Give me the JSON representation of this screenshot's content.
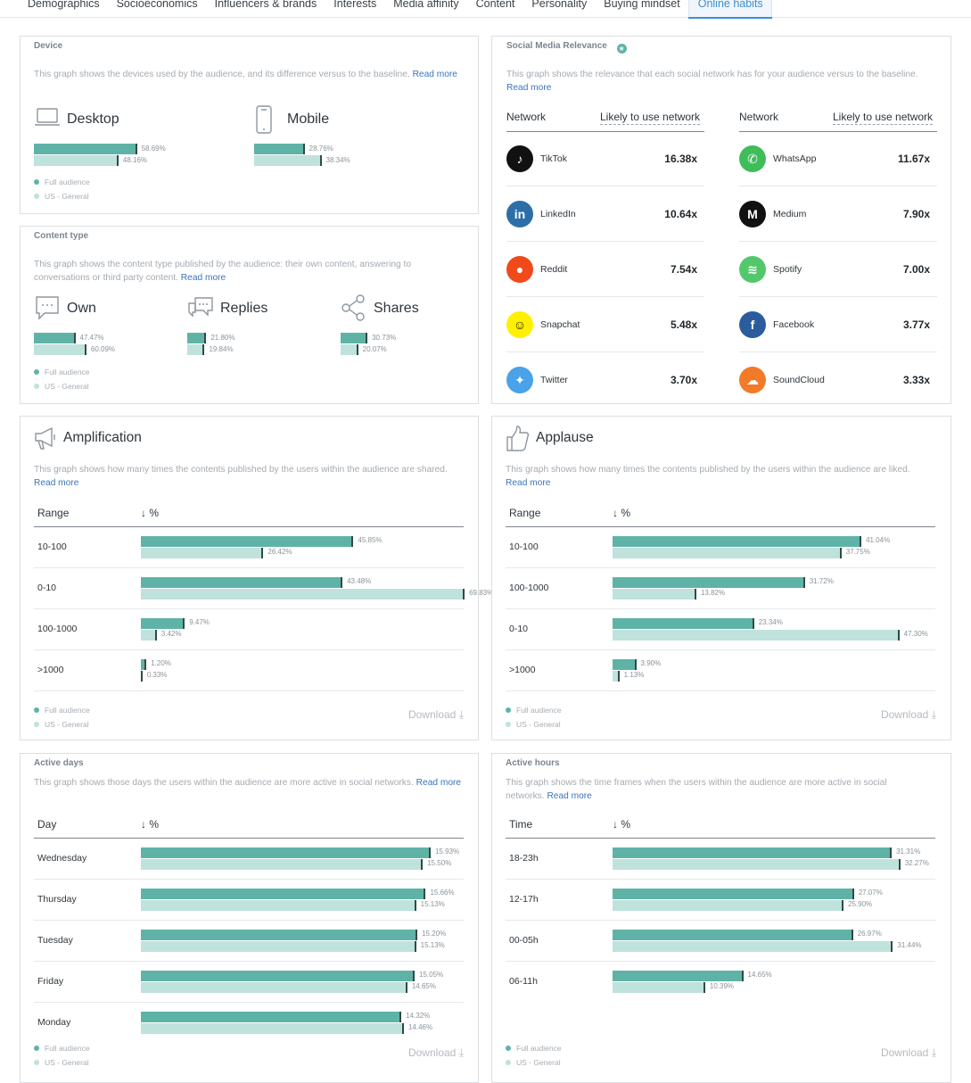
{
  "tabs": [
    "Demographics",
    "Socioeconomics",
    "Influencers & brands",
    "Interests",
    "Media affinity",
    "Content",
    "Personality",
    "Buying mindset",
    "Online habits"
  ],
  "colors": {
    "full": "#5fb3a6",
    "baseline": "#bfe2dd",
    "link": "#3b74b8",
    "active_tab": "#3b8fd0"
  },
  "legend": {
    "full": "Full audience",
    "base": "US - General"
  },
  "read_more": "Read more",
  "download": "Download",
  "device": {
    "title": "Device",
    "desc": "This graph shows the devices used by the audience, and its difference versus to the baseline.",
    "items": [
      {
        "icon": "laptop-icon",
        "label": "Desktop",
        "full": 58.69,
        "base": 48.16,
        "full_label": "58.69%",
        "base_label": "48.16%"
      },
      {
        "icon": "mobile-phone-icon",
        "label": "Mobile",
        "full": 28.76,
        "base": 38.34,
        "full_label": "28.76%",
        "base_label": "38.34%"
      }
    ]
  },
  "content_type": {
    "title": "Content type",
    "desc": "This graph shows the content type published by the audience: their own content, answering to conversations or third party content.",
    "items": [
      {
        "icon": "chat-bubble-icon",
        "label": "Own",
        "full": 47.47,
        "base": 60.09,
        "full_label": "47.47%",
        "base_label": "60.09%"
      },
      {
        "icon": "replies-icon",
        "label": "Replies",
        "full": 21.8,
        "base": 19.84,
        "full_label": "21.80%",
        "base_label": "19.84%"
      },
      {
        "icon": "share-icon",
        "label": "Shares",
        "full": 30.73,
        "base": 20.07,
        "full_label": "30.73%",
        "base_label": "20.07%"
      }
    ]
  },
  "social": {
    "title": "Social Media Relevance",
    "desc": "This graph shows the relevance that each social network has for your audience versus to the baseline.",
    "col_network": "Network",
    "col_likely": "Likely to use network",
    "left": [
      {
        "name": "TikTok",
        "value": "16.38x",
        "color": "#111111",
        "glyph": "♪"
      },
      {
        "name": "LinkedIn",
        "value": "10.64x",
        "color": "#2c6fa8",
        "glyph": "in"
      },
      {
        "name": "Reddit",
        "value": "7.54x",
        "color": "#f04a1a",
        "glyph": "●"
      },
      {
        "name": "Snapchat",
        "value": "5.48x",
        "color": "#fff000",
        "glyph": "☺"
      },
      {
        "name": "Twitter",
        "value": "3.70x",
        "color": "#4aa3e8",
        "glyph": "✦"
      }
    ],
    "right": [
      {
        "name": "WhatsApp",
        "value": "11.67x",
        "color": "#3fbd5a",
        "glyph": "✆"
      },
      {
        "name": "Medium",
        "value": "7.90x",
        "color": "#111111",
        "glyph": "M"
      },
      {
        "name": "Spotify",
        "value": "7.00x",
        "color": "#52c86a",
        "glyph": "≋"
      },
      {
        "name": "Facebook",
        "value": "3.77x",
        "color": "#2b5d9e",
        "glyph": "f"
      },
      {
        "name": "SoundCloud",
        "value": "3.33x",
        "color": "#f27a28",
        "glyph": "☁"
      }
    ]
  },
  "amplification": {
    "title": "Amplification",
    "desc": "This graph shows how many times the contents published by the users within the audience are shared.",
    "col1": "Range",
    "col2": "%",
    "rows": [
      {
        "label": "10-100",
        "full": 45.85,
        "base": 26.42,
        "full_label": "45.85%",
        "base_label": "26.42%"
      },
      {
        "label": "0-10",
        "full": 43.48,
        "base": 69.83,
        "full_label": "43.48%",
        "base_label": "69.83%"
      },
      {
        "label": "100-1000",
        "full": 9.47,
        "base": 3.42,
        "full_label": "9.47%",
        "base_label": "3.42%"
      },
      {
        "label": ">1000",
        "full": 1.2,
        "base": 0.33,
        "full_label": "1.20%",
        "base_label": "0.33%"
      }
    ]
  },
  "applause": {
    "title": "Applause",
    "desc": "This graph shows how many times the contents published by the users within the audience are liked.",
    "col1": "Range",
    "col2": "%",
    "rows": [
      {
        "label": "10-100",
        "full": 41.04,
        "base": 37.75,
        "full_label": "41.04%",
        "base_label": "37.75%"
      },
      {
        "label": "100-1000",
        "full": 31.72,
        "base": 13.82,
        "full_label": "31.72%",
        "base_label": "13.82%"
      },
      {
        "label": "0-10",
        "full": 23.34,
        "base": 47.3,
        "full_label": "23.34%",
        "base_label": "47.30%"
      },
      {
        "label": ">1000",
        "full": 3.9,
        "base": 1.13,
        "full_label": "3.90%",
        "base_label": "1.13%"
      }
    ]
  },
  "active_days": {
    "title": "Active days",
    "desc": "This graph shows those days the users within the audience are more active in social networks.",
    "col1": "Day",
    "col2": "%",
    "rows": [
      {
        "label": "Wednesday",
        "full": 15.93,
        "base": 15.5,
        "full_label": "15.93%",
        "base_label": "15.50%"
      },
      {
        "label": "Thursday",
        "full": 15.66,
        "base": 15.13,
        "full_label": "15.66%",
        "base_label": "15.13%"
      },
      {
        "label": "Tuesday",
        "full": 15.2,
        "base": 15.13,
        "full_label": "15.20%",
        "base_label": "15.13%"
      },
      {
        "label": "Friday",
        "full": 15.05,
        "base": 14.65,
        "full_label": "15.05%",
        "base_label": "14.65%"
      },
      {
        "label": "Monday",
        "full": 14.32,
        "base": 14.46,
        "full_label": "14.32%",
        "base_label": "14.46%"
      }
    ]
  },
  "active_hours": {
    "title": "Active hours",
    "desc": "This graph shows the time frames when the users within the audience are more active in social networks.",
    "col1": "Time",
    "col2": "%",
    "rows": [
      {
        "label": "18-23h",
        "full": 31.31,
        "base": 32.27,
        "full_label": "31.31%",
        "base_label": "32.27%"
      },
      {
        "label": "12-17h",
        "full": 27.07,
        "base": 25.9,
        "full_label": "27.07%",
        "base_label": "25.90%"
      },
      {
        "label": "00-05h",
        "full": 26.97,
        "base": 31.44,
        "full_label": "26.97%",
        "base_label": "31.44%"
      },
      {
        "label": "06-11h",
        "full": 14.65,
        "base": 10.39,
        "full_label": "14.65%",
        "base_label": "10.39%"
      }
    ]
  }
}
